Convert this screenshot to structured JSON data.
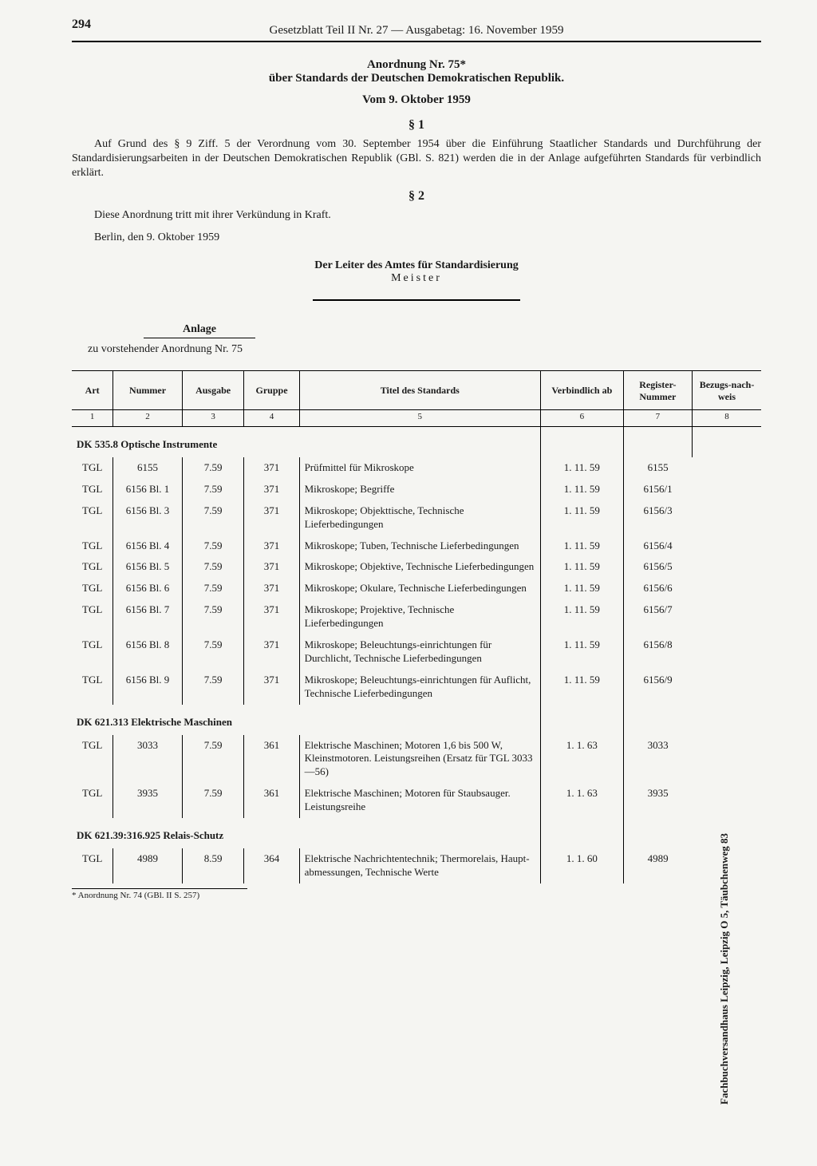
{
  "pageNumber": "294",
  "runningHead": "Gesetzblatt Teil II Nr. 27 — Ausgabetag: 16. November 1959",
  "title1": "Anordnung Nr. 75*",
  "title2": "über Standards der Deutschen Demokratischen Republik.",
  "dateLine": "Vom 9. Oktober 1959",
  "section1": "§ 1",
  "para1": "Auf Grund des § 9 Ziff. 5 der Verordnung vom 30. September 1954 über die Einführung Staatlicher Standards und Durchführung der Standardisierungsarbeiten in der Deutschen Demokratischen Republik (GBl. S. 821) werden die in der Anlage aufgeführten Standards für verbindlich erklärt.",
  "section2": "§ 2",
  "para2": "Diese Anordnung tritt mit ihrer Verkündung in Kraft.",
  "place": "Berlin, den 9. Oktober 1959",
  "signerTitle": "Der Leiter des Amtes für Standardisierung",
  "signerName": "Meister",
  "anlage": "Anlage",
  "anlageSub": "zu vorstehender Anordnung Nr. 75",
  "columns": [
    "Art",
    "Nummer",
    "Ausgabe",
    "Gruppe",
    "Titel des Standards",
    "Verbindlich ab",
    "Register-Nummer",
    "Bezugs-nach-weis"
  ],
  "colNums": [
    "1",
    "2",
    "3",
    "4",
    "5",
    "6",
    "7",
    "8"
  ],
  "sections": [
    {
      "label": "DK 535.8 Optische Instrumente",
      "rows": [
        {
          "art": "TGL",
          "nummer": "6155",
          "ausgabe": "7.59",
          "gruppe": "371",
          "titel": "Prüfmittel für Mikroskope",
          "ab": "1. 11. 59",
          "reg": "6155"
        },
        {
          "art": "TGL",
          "nummer": "6156 Bl. 1",
          "ausgabe": "7.59",
          "gruppe": "371",
          "titel": "Mikroskope; Begriffe",
          "ab": "1. 11. 59",
          "reg": "6156/1"
        },
        {
          "art": "TGL",
          "nummer": "6156 Bl. 3",
          "ausgabe": "7.59",
          "gruppe": "371",
          "titel": "Mikroskope; Objekttische, Technische Lieferbedingungen",
          "ab": "1. 11. 59",
          "reg": "6156/3"
        },
        {
          "art": "TGL",
          "nummer": "6156 Bl. 4",
          "ausgabe": "7.59",
          "gruppe": "371",
          "titel": "Mikroskope; Tuben, Technische Lieferbedingungen",
          "ab": "1. 11. 59",
          "reg": "6156/4"
        },
        {
          "art": "TGL",
          "nummer": "6156 Bl. 5",
          "ausgabe": "7.59",
          "gruppe": "371",
          "titel": "Mikroskope; Objektive, Technische Lieferbedingungen",
          "ab": "1. 11. 59",
          "reg": "6156/5"
        },
        {
          "art": "TGL",
          "nummer": "6156 Bl. 6",
          "ausgabe": "7.59",
          "gruppe": "371",
          "titel": "Mikroskope; Okulare, Technische Lieferbedingungen",
          "ab": "1. 11. 59",
          "reg": "6156/6"
        },
        {
          "art": "TGL",
          "nummer": "6156 Bl. 7",
          "ausgabe": "7.59",
          "gruppe": "371",
          "titel": "Mikroskope; Projektive, Technische Lieferbedingungen",
          "ab": "1. 11. 59",
          "reg": "6156/7"
        },
        {
          "art": "TGL",
          "nummer": "6156 Bl. 8",
          "ausgabe": "7.59",
          "gruppe": "371",
          "titel": "Mikroskope; Beleuchtungs-einrichtungen für Durchlicht, Technische Lieferbedingungen",
          "ab": "1. 11. 59",
          "reg": "6156/8"
        },
        {
          "art": "TGL",
          "nummer": "6156 Bl. 9",
          "ausgabe": "7.59",
          "gruppe": "371",
          "titel": "Mikroskope; Beleuchtungs-einrichtungen für Auflicht, Technische Lieferbedingungen",
          "ab": "1. 11. 59",
          "reg": "6156/9"
        }
      ]
    },
    {
      "label": "DK 621.313 Elektrische Maschinen",
      "rows": [
        {
          "art": "TGL",
          "nummer": "3033",
          "ausgabe": "7.59",
          "gruppe": "361",
          "titel": "Elektrische Maschinen; Motoren 1,6 bis 500 W, Kleinstmotoren. Leistungsreihen (Ersatz für TGL 3033—56)",
          "ab": "1.  1. 63",
          "reg": "3033"
        },
        {
          "art": "TGL",
          "nummer": "3935",
          "ausgabe": "7.59",
          "gruppe": "361",
          "titel": "Elektrische Maschinen; Motoren für Staubsauger. Leistungsreihe",
          "ab": "1.  1. 63",
          "reg": "3935"
        }
      ]
    },
    {
      "label": "DK 621.39:316.925 Relais-Schutz",
      "rows": [
        {
          "art": "TGL",
          "nummer": "4989",
          "ausgabe": "8.59",
          "gruppe": "364",
          "titel": "Elektrische Nachrichtentechnik; Thermorelais, Haupt-abmessungen, Technische Werte",
          "ab": "1.  1. 60",
          "reg": "4989"
        }
      ]
    }
  ],
  "bezug": "Fachbuchversandhaus Leipzig, Leipzig O 5, Täubchenweg 83",
  "footnote": "* Anordnung Nr. 74 (GBl. II S. 257)"
}
